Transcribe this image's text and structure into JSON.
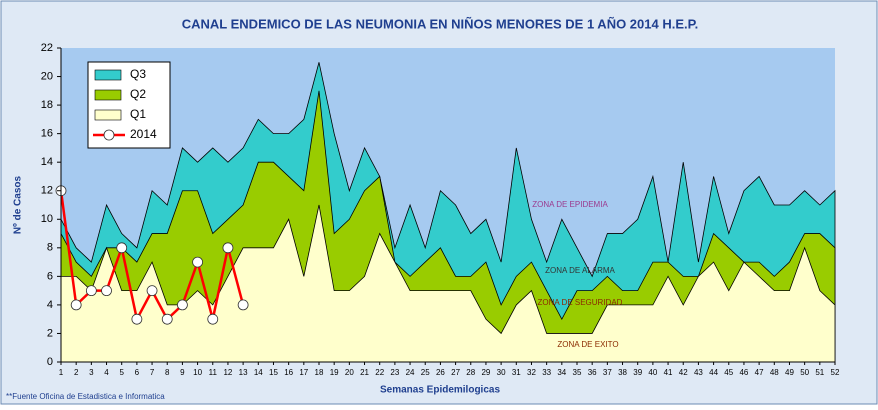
{
  "chart_data": {
    "type": "area",
    "title": "CANAL ENDEMICO DE LAS NEUMONIA EN NIÑOS MENORES DE 1 AÑO 2014 H.E.P.",
    "x_label": "Semanas Epidemilogicas",
    "y_label": "Nº de Casos",
    "footnote": "**Fuente Oficina de Estadistica e Informatica",
    "annotations": [
      "ZONA DE EPIDEMIA",
      "ZONA DE ALARMA",
      "ZONA DE SEGURIDAD",
      "ZONA DE EXITO"
    ],
    "background_color": "#a6caf0",
    "x": [
      1,
      2,
      3,
      4,
      5,
      6,
      7,
      8,
      9,
      10,
      11,
      12,
      13,
      14,
      15,
      16,
      17,
      18,
      19,
      20,
      21,
      22,
      23,
      24,
      25,
      26,
      27,
      28,
      29,
      30,
      31,
      32,
      33,
      34,
      35,
      36,
      37,
      38,
      39,
      40,
      41,
      42,
      43,
      44,
      45,
      46,
      47,
      48,
      49,
      50,
      51,
      52
    ],
    "xlim": [
      1,
      52
    ],
    "ylim": [
      0,
      22
    ],
    "yticks": [
      0,
      2,
      4,
      6,
      8,
      10,
      12,
      14,
      16,
      18,
      20,
      22
    ],
    "legend": "top-left",
    "series": [
      {
        "name": "Q3",
        "kind": "area",
        "color": "#33cccc",
        "values": [
          10,
          8,
          7,
          11,
          9,
          8,
          12,
          11,
          15,
          14,
          15,
          14,
          15,
          17,
          16,
          16,
          17,
          21,
          16,
          12,
          15,
          13,
          8,
          11,
          8,
          12,
          11,
          9,
          10,
          7,
          15,
          10,
          7,
          10,
          8,
          6,
          9,
          9,
          10,
          13,
          7,
          14,
          7,
          13,
          9,
          12,
          13,
          11,
          11,
          12,
          11,
          12
        ]
      },
      {
        "name": "Q2",
        "kind": "area",
        "color": "#99cc00",
        "values": [
          9,
          7,
          6,
          8,
          8,
          7,
          9,
          9,
          12,
          12,
          9,
          10,
          11,
          14,
          14,
          13,
          12,
          19,
          9,
          10,
          12,
          13,
          7,
          6,
          7,
          8,
          6,
          6,
          7,
          4,
          6,
          7,
          5,
          3,
          5,
          5,
          6,
          5,
          5,
          7,
          7,
          6,
          6,
          9,
          8,
          7,
          7,
          6,
          7,
          9,
          9,
          8
        ]
      },
      {
        "name": "Q1",
        "kind": "area",
        "color": "#ffffcc",
        "values": [
          6,
          6,
          5,
          8,
          5,
          5,
          7,
          4,
          4,
          5,
          4,
          6,
          8,
          8,
          8,
          10,
          6,
          11,
          5,
          5,
          6,
          9,
          7,
          5,
          5,
          5,
          5,
          5,
          3,
          2,
          4,
          5,
          2,
          2,
          2,
          2,
          4,
          4,
          4,
          4,
          6,
          4,
          6,
          7,
          5,
          7,
          6,
          5,
          5,
          8,
          5,
          4
        ]
      },
      {
        "name": "2014",
        "kind": "line",
        "color": "#ff0000",
        "values": [
          12,
          4,
          5,
          5,
          8,
          3,
          5,
          3,
          4,
          7,
          3,
          8,
          4,
          null,
          null,
          null,
          null,
          null,
          null,
          null,
          null,
          null,
          null,
          null,
          null,
          null,
          null,
          null,
          null,
          null,
          null,
          null,
          null,
          null,
          null,
          null,
          null,
          null,
          null,
          null,
          null,
          null,
          null,
          null,
          null,
          null,
          null,
          null,
          null,
          null,
          null,
          null
        ]
      }
    ]
  }
}
